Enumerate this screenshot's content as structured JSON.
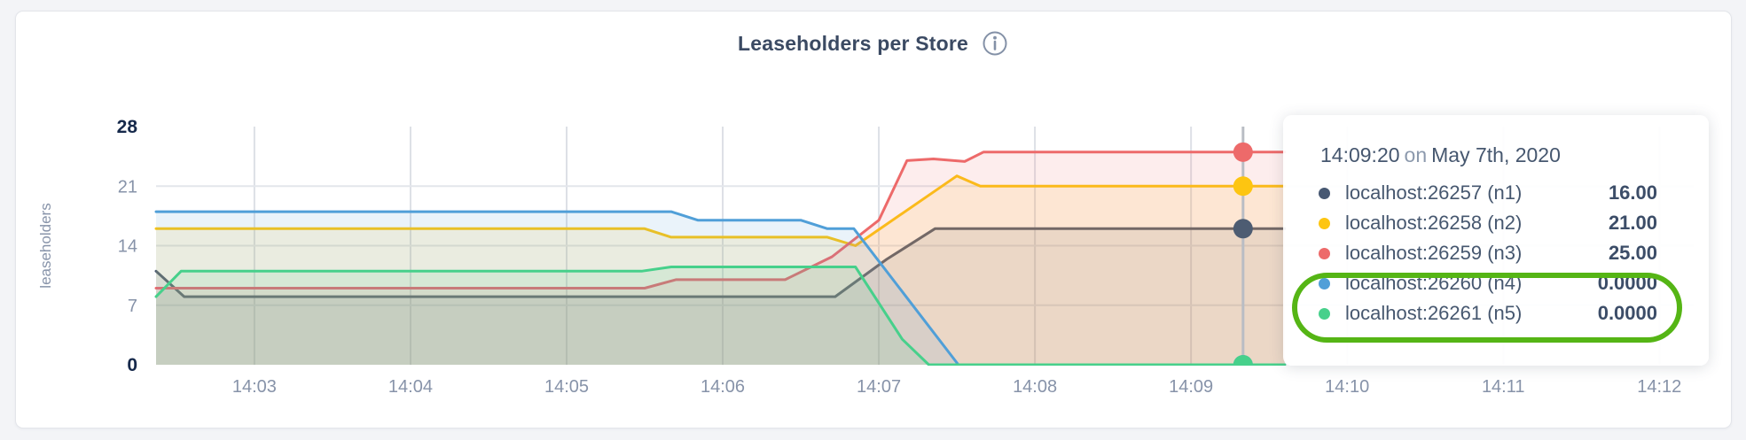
{
  "page": {
    "background": "#f3f4f7",
    "panel_border": "#e3e5ea"
  },
  "header": {
    "title": "Leaseholders per Store",
    "info_icon": "info-circle"
  },
  "chart_data": {
    "type": "area",
    "title": "Leaseholders per Store",
    "xlabel": "",
    "ylabel": "leaseholders",
    "grid": true,
    "x_axis": {
      "tick_labels": [
        "14:03",
        "14:04",
        "14:05",
        "14:06",
        "14:07",
        "14:08",
        "14:09",
        "14:10",
        "14:11",
        "14:12"
      ],
      "tick_minutes": [
        3,
        4,
        5,
        6,
        7,
        8,
        9,
        10,
        11,
        12
      ],
      "domain_minutes": [
        2.37,
        12.22
      ]
    },
    "y_axis": {
      "ticks": [
        0,
        7,
        14,
        21,
        28
      ],
      "domain": [
        0,
        28
      ],
      "label": "leaseholders"
    },
    "series": [
      {
        "name": "localhost:26257 (n1)",
        "color": "#4d5c72",
        "points": [
          [
            2.37,
            11
          ],
          [
            2.55,
            8
          ],
          [
            6.72,
            8
          ],
          [
            7.05,
            12.4
          ],
          [
            7.36,
            16
          ],
          [
            9.6,
            16
          ]
        ],
        "hover_value": 16
      },
      {
        "name": "localhost:26258 (n2)",
        "color": "#fdc511",
        "points": [
          [
            2.37,
            16
          ],
          [
            5.5,
            16
          ],
          [
            5.67,
            15
          ],
          [
            6.67,
            15
          ],
          [
            6.85,
            14
          ],
          [
            7.5,
            22.2
          ],
          [
            7.65,
            21
          ],
          [
            9.6,
            21
          ]
        ],
        "hover_value": 21
      },
      {
        "name": "localhost:26259 (n3)",
        "color": "#ed6a6a",
        "points": [
          [
            2.37,
            9
          ],
          [
            5.5,
            9
          ],
          [
            5.7,
            10
          ],
          [
            6.4,
            10
          ],
          [
            6.7,
            12.7
          ],
          [
            7.0,
            17
          ],
          [
            7.18,
            24
          ],
          [
            7.35,
            24.2
          ],
          [
            7.55,
            23.9
          ],
          [
            7.67,
            25
          ],
          [
            9.6,
            25
          ]
        ],
        "hover_value": 25
      },
      {
        "name": "localhost:26260 (n4)",
        "color": "#509fd8",
        "points": [
          [
            2.37,
            18
          ],
          [
            5.67,
            18
          ],
          [
            5.84,
            17
          ],
          [
            6.5,
            17
          ],
          [
            6.67,
            16
          ],
          [
            6.84,
            16
          ],
          [
            7.51,
            0
          ],
          [
            9.6,
            0
          ]
        ],
        "hover_value": 0
      },
      {
        "name": "localhost:26261 (n5)",
        "color": "#47d08b",
        "points": [
          [
            2.37,
            8
          ],
          [
            2.53,
            11
          ],
          [
            5.48,
            11
          ],
          [
            5.67,
            11.5
          ],
          [
            6.85,
            11.5
          ],
          [
            7.15,
            3
          ],
          [
            7.32,
            0
          ],
          [
            9.6,
            0
          ]
        ],
        "hover_value": 0
      }
    ],
    "hover": {
      "time_minutes": 9.3333,
      "line_color": "#b9bdc4"
    },
    "fill_opacity": 0.12,
    "gridline_color_vertical": "#dde0e6",
    "gridline_color_horizontal": "#e3e6eb"
  },
  "tooltip": {
    "time": "14:09:20",
    "conjunction": "on",
    "date": "May 7th, 2020",
    "rows": [
      {
        "label": "localhost:26257 (n1)",
        "value": "16.00",
        "color": "#475872",
        "circled": false
      },
      {
        "label": "localhost:26258 (n2)",
        "value": "21.00",
        "color": "#fdc511",
        "circled": false
      },
      {
        "label": "localhost:26259 (n3)",
        "value": "25.00",
        "color": "#ed6a6a",
        "circled": false
      },
      {
        "label": "localhost:26260 (n4)",
        "value": "0.0000",
        "color": "#509fd8",
        "circled": true
      },
      {
        "label": "localhost:26261 (n5)",
        "value": "0.0000",
        "color": "#47d08b",
        "circled": true
      }
    ]
  },
  "annotation": {
    "shape": "ellipse",
    "color": "#55b515"
  }
}
